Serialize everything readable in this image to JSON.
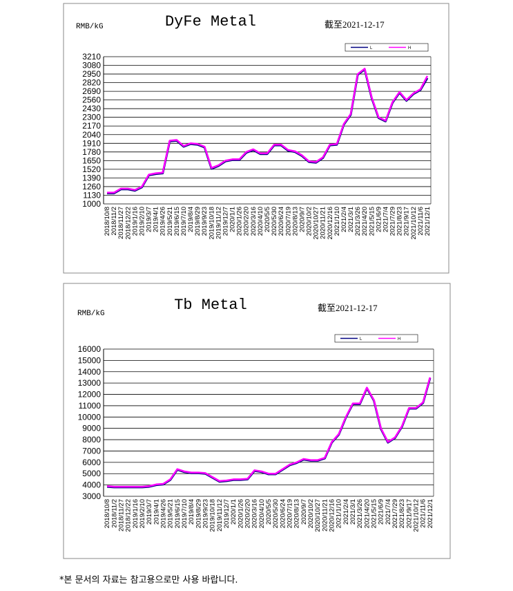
{
  "chart_data": [
    {
      "type": "line",
      "title": "DyFe Metal",
      "subtitle": "截至2021-12-17",
      "y_label": "RMB/kG",
      "categories": [
        "2018/10/8",
        "2018/11/2",
        "2018/11/27",
        "2018/12/22",
        "2019/1/16",
        "2019/2/10",
        "2019/3/7",
        "2019/4/1",
        "2019/4/26",
        "2019/5/21",
        "2019/6/15",
        "2019/7/10",
        "2019/8/4",
        "2019/8/29",
        "2019/9/23",
        "2019/10/18",
        "2019/11/12",
        "2019/12/7",
        "2020/1/1",
        "2020/1/26",
        "2020/2/20",
        "2020/3/16",
        "2020/4/10",
        "2020/5/5",
        "2020/5/30",
        "2020/6/24",
        "2020/7/19",
        "2020/8/13",
        "2020/9/7",
        "2020/10/2",
        "2020/10/27",
        "2020/11/21",
        "2020/12/16",
        "2021/1/10",
        "2021/2/4",
        "2021/3/1",
        "2021/3/26",
        "2021/4/20",
        "2021/5/15",
        "2021/6/9",
        "2021/7/4",
        "2021/7/29",
        "2021/8/23",
        "2021/9/17",
        "2021/10/12",
        "2021/11/6",
        "2021/12/1"
      ],
      "series": [
        {
          "name": "L",
          "color": "#000080",
          "values": [
            1160,
            1160,
            1220,
            1220,
            1200,
            1250,
            1430,
            1450,
            1460,
            1940,
            1950,
            1860,
            1900,
            1890,
            1850,
            1530,
            1570,
            1640,
            1660,
            1660,
            1770,
            1810,
            1750,
            1750,
            1880,
            1880,
            1800,
            1780,
            1720,
            1630,
            1620,
            1690,
            1880,
            1890,
            2190,
            2340,
            2940,
            3020,
            2590,
            2290,
            2240,
            2520,
            2670,
            2550,
            2650,
            2710,
            2890
          ]
        },
        {
          "name": "H",
          "color": "#ff00ff",
          "values": [
            1170,
            1170,
            1230,
            1230,
            1210,
            1260,
            1440,
            1460,
            1470,
            1950,
            1960,
            1870,
            1910,
            1900,
            1860,
            1540,
            1580,
            1650,
            1670,
            1670,
            1780,
            1820,
            1760,
            1760,
            1890,
            1890,
            1810,
            1790,
            1730,
            1640,
            1630,
            1700,
            1890,
            1900,
            2200,
            2350,
            2950,
            3030,
            2600,
            2300,
            2250,
            2530,
            2680,
            2560,
            2660,
            2720,
            2920
          ]
        }
      ],
      "ylim": [
        1000,
        3210
      ],
      "yticks": [
        1000,
        1130,
        1260,
        1390,
        1520,
        1650,
        1780,
        1910,
        2040,
        2170,
        2300,
        2430,
        2560,
        2690,
        2820,
        2950,
        3080,
        3210
      ],
      "grid": true,
      "legend": "top-right"
    },
    {
      "type": "line",
      "title": "Tb Metal",
      "subtitle": "截至2021-12-17",
      "y_label": "RMB/kG",
      "categories": [
        "2018/10/8",
        "2018/11/2",
        "2018/11/27",
        "2018/12/22",
        "2019/1/16",
        "2019/2/10",
        "2019/3/7",
        "2019/4/1",
        "2019/4/26",
        "2019/5/21",
        "2019/6/15",
        "2019/7/10",
        "2019/8/4",
        "2019/8/29",
        "2019/9/23",
        "2019/10/18",
        "2019/11/12",
        "2019/12/7",
        "2020/1/1",
        "2020/1/26",
        "2020/2/20",
        "2020/3/16",
        "2020/4/10",
        "2020/5/5",
        "2020/5/30",
        "2020/6/24",
        "2020/7/19",
        "2020/8/13",
        "2020/9/7",
        "2020/10/2",
        "2020/10/27",
        "2020/11/21",
        "2020/12/16",
        "2021/1/10",
        "2021/2/4",
        "2021/3/1",
        "2021/3/26",
        "2021/4/20",
        "2021/5/15",
        "2021/6/9",
        "2021/7/4",
        "2021/7/29",
        "2021/8/23",
        "2021/9/17",
        "2021/10/12",
        "2021/11/6",
        "2021/12/1"
      ],
      "series": [
        {
          "name": "L",
          "color": "#000080",
          "values": [
            3850,
            3800,
            3800,
            3800,
            3800,
            3800,
            3850,
            4000,
            4050,
            4450,
            5350,
            5150,
            5050,
            5050,
            5000,
            4650,
            4300,
            4350,
            4450,
            4450,
            4500,
            5250,
            5150,
            4950,
            4950,
            5350,
            5750,
            5950,
            6250,
            6150,
            6150,
            6350,
            7750,
            8450,
            9950,
            11150,
            11150,
            12550,
            11450,
            8950,
            7750,
            8150,
            9150,
            10750,
            10750,
            11250,
            13450
          ]
        },
        {
          "name": "H",
          "color": "#ff00ff",
          "values": [
            3900,
            3850,
            3850,
            3850,
            3850,
            3850,
            3900,
            4050,
            4100,
            4500,
            5400,
            5200,
            5100,
            5100,
            5050,
            4700,
            4350,
            4400,
            4500,
            4500,
            4550,
            5300,
            5200,
            5000,
            5000,
            5400,
            5800,
            6000,
            6300,
            6200,
            6200,
            6400,
            7800,
            8500,
            10000,
            11200,
            11200,
            12600,
            11500,
            9000,
            7800,
            8200,
            9200,
            10800,
            10800,
            11300,
            13500
          ]
        }
      ],
      "ylim": [
        3000,
        16000
      ],
      "yticks": [
        3000,
        4000,
        5000,
        6000,
        7000,
        8000,
        9000,
        10000,
        11000,
        12000,
        13000,
        14000,
        15000,
        16000
      ],
      "grid": true,
      "legend": "top-right"
    }
  ],
  "footnote": "*본 문서의 자료는 참고용으로만 사용 바랍니다."
}
